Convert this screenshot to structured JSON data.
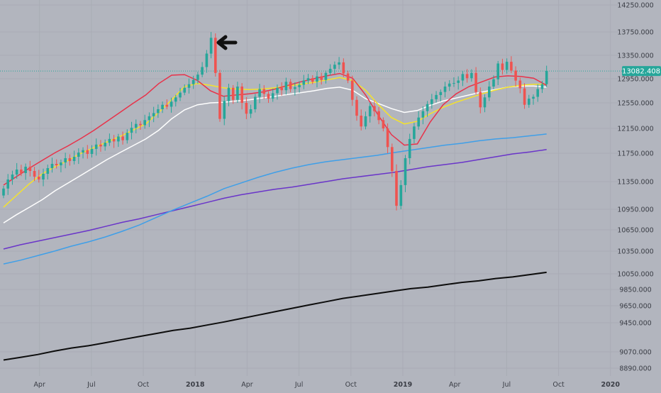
{
  "colors": {
    "background": "#b2b5be",
    "grid": "#a9acb5",
    "axis_text": "#3a3d45",
    "price_line": "#26a69a",
    "candle_up": "#26a69a",
    "candle_down": "#ef5350",
    "ma_red": "#e8324a",
    "ma_yellow": "#f5e32a",
    "ma_white": "#ffffff",
    "ma_blue": "#3f9fe8",
    "ma_purple": "#6a35c9",
    "ma_black": "#0d0d0d",
    "arrow": "#111111"
  },
  "chart_data": {
    "type": "candlestick",
    "title": "",
    "last_price_label": "13082.408",
    "last_price": 13082.408,
    "yaxis": {
      "tick_labels": [
        "14250.000",
        "13750.000",
        "13350.000",
        "12950.000",
        "12550.000",
        "12150.000",
        "11750.000",
        "11350.000",
        "10950.000",
        "10650.000",
        "10350.000",
        "10050.000",
        "9850.000",
        "9650.000",
        "9450.000",
        "9070.000",
        "8890.000"
      ],
      "tick_values": [
        14250,
        13750,
        13350,
        12950,
        12550,
        12150,
        11750,
        11350,
        10950,
        10650,
        10350,
        10050,
        9850,
        9650,
        9450,
        9070,
        8890
      ]
    },
    "xaxis": {
      "tick_labels": [
        "Apr",
        "Jul",
        "Oct",
        "2018",
        "Apr",
        "Jul",
        "Oct",
        "2019",
        "Apr",
        "Jul",
        "Oct",
        "2020"
      ],
      "tick_weeks": [
        9,
        22,
        35,
        48,
        61,
        74,
        87,
        100,
        113,
        126,
        139,
        152
      ]
    },
    "candles_close": [
      11250,
      11380,
      11450,
      11520,
      11470,
      11560,
      11500,
      11420,
      11380,
      11460,
      11540,
      11600,
      11580,
      11620,
      11680,
      11640,
      11700,
      11760,
      11800,
      11740,
      11820,
      11890,
      11860,
      11920,
      11980,
      11940,
      12020,
      11960,
      12080,
      12160,
      12220,
      12200,
      12280,
      12340,
      12390,
      12450,
      12520,
      12490,
      12570,
      12640,
      12720,
      12800,
      12860,
      12930,
      13020,
      13150,
      13380,
      13650,
      13050,
      12300,
      12580,
      12800,
      12600,
      12820,
      12550,
      12380,
      12450,
      12650,
      12780,
      12700,
      12620,
      12710,
      12800,
      12760,
      12900,
      12780,
      12810,
      12850,
      12920,
      12960,
      12900,
      12990,
      12930,
      13050,
      13120,
      13190,
      13230,
      13040,
      12920,
      12600,
      12350,
      12180,
      12340,
      12500,
      12420,
      12280,
      12150,
      11850,
      11500,
      11000,
      11300,
      11680,
      11980,
      12180,
      12320,
      12420,
      12530,
      12610,
      12680,
      12730,
      12820,
      12870,
      12880,
      12920,
      13030,
      12960,
      13050,
      12730,
      12480,
      12640,
      12820,
      12940,
      13210,
      13100,
      13240,
      13090,
      12920,
      12790,
      12520,
      12620,
      12650,
      12780,
      12860,
      13082.408
    ],
    "candles_open_first": 11150,
    "moving_averages": [
      {
        "label": "ma-red",
        "values": [
          11300,
          11420,
          11540,
          11650,
          11760,
          11870,
          11990,
          12120,
          12260,
          12400,
          12540,
          12680,
          12870,
          13010,
          13020,
          12920,
          12750,
          12660,
          12680,
          12700,
          12730,
          12780,
          12840,
          12900,
          12950,
          13000,
          13040,
          12960,
          12680,
          12350,
          12050,
          11880,
          11900,
          12250,
          12520,
          12700,
          12820,
          12900,
          12980,
          13000,
          12990,
          12960,
          12840
        ]
      },
      {
        "label": "ma-yellow",
        "values": [
          10980,
          11150,
          11320,
          11460,
          11560,
          11650,
          11750,
          11840,
          11930,
          12020,
          12120,
          12220,
          12400,
          12600,
          12820,
          12870,
          12840,
          12800,
          12780,
          12770,
          12780,
          12800,
          12830,
          12860,
          12890,
          12930,
          12970,
          12920,
          12760,
          12520,
          12320,
          12220,
          12260,
          12380,
          12480,
          12560,
          12630,
          12700,
          12760,
          12810,
          12840,
          12860,
          12860
        ]
      },
      {
        "label": "ma-white",
        "values": [
          10750,
          10870,
          10980,
          11090,
          11220,
          11330,
          11440,
          11550,
          11660,
          11760,
          11870,
          11980,
          12120,
          12300,
          12440,
          12520,
          12550,
          12560,
          12580,
          12600,
          12630,
          12660,
          12690,
          12720,
          12750,
          12790,
          12810,
          12760,
          12620,
          12540,
          12460,
          12400,
          12430,
          12510,
          12580,
          12630,
          12680,
          12730,
          12770,
          12810,
          12830,
          12830,
          12810
        ]
      },
      {
        "label": "ma-blue",
        "values": [
          10180,
          10230,
          10290,
          10350,
          10420,
          10480,
          10550,
          10630,
          10720,
          10830,
          10940,
          11040,
          11140,
          11250,
          11330,
          11410,
          11480,
          11540,
          11590,
          11630,
          11660,
          11690,
          11720,
          11760,
          11800,
          11840,
          11880,
          11910,
          11950,
          11980,
          12000,
          12030,
          12060
        ]
      },
      {
        "label": "ma-purple",
        "values": [
          10380,
          10440,
          10490,
          10540,
          10590,
          10640,
          10700,
          10760,
          10810,
          10870,
          10930,
          10990,
          11050,
          11110,
          11160,
          11200,
          11240,
          11270,
          11310,
          11350,
          11390,
          11420,
          11450,
          11480,
          11520,
          11560,
          11590,
          11620,
          11660,
          11700,
          11740,
          11770,
          11810
        ]
      },
      {
        "label": "ma-black",
        "values": [
          8980,
          9010,
          9040,
          9080,
          9120,
          9150,
          9190,
          9230,
          9270,
          9310,
          9350,
          9380,
          9420,
          9460,
          9500,
          9540,
          9580,
          9620,
          9660,
          9700,
          9740,
          9770,
          9800,
          9830,
          9860,
          9880,
          9910,
          9940,
          9960,
          9990,
          10010,
          10040,
          10070
        ]
      }
    ]
  }
}
